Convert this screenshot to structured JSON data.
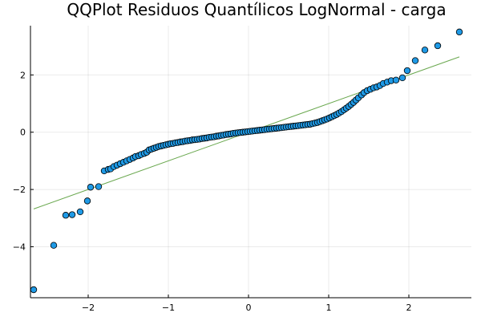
{
  "chart_data": {
    "type": "scatter",
    "title": "QQPlot Residuos Quantílicos LogNormal - carga",
    "xlabel": "",
    "ylabel": "",
    "xlim": [
      -2.72,
      2.78
    ],
    "ylim": [
      -5.78,
      3.72
    ],
    "xticks": [
      -2,
      -1,
      0,
      1,
      2
    ],
    "xtick_labels": [
      "−2",
      "−1",
      "0",
      "1",
      "2"
    ],
    "yticks": [
      -4,
      -2,
      0,
      2
    ],
    "ytick_labels": [
      "−4",
      "−2",
      "0",
      "2"
    ],
    "grid": true,
    "legend": "none",
    "colors": {
      "points": "#1f9ae6",
      "point_edge": "#000000",
      "line": "#6aa84f"
    },
    "series": [
      {
        "kind": "points",
        "x": [
          -2.68,
          -2.43,
          -2.28,
          -2.2,
          -2.1,
          -2.01,
          -1.97,
          -1.87,
          -1.8,
          -1.75,
          -1.72,
          -1.68,
          -1.64,
          -1.6,
          -1.56,
          -1.52,
          -1.48,
          -1.44,
          -1.41,
          -1.37,
          -1.34,
          -1.3,
          -1.27,
          -1.24,
          -1.21,
          -1.18,
          -1.15,
          -1.12,
          -1.09,
          -1.06,
          -1.03,
          -1.0,
          -0.97,
          -0.94,
          -0.91,
          -0.88,
          -0.85,
          -0.82,
          -0.79,
          -0.76,
          -0.73,
          -0.7,
          -0.67,
          -0.64,
          -0.61,
          -0.58,
          -0.55,
          -0.52,
          -0.49,
          -0.46,
          -0.43,
          -0.4,
          -0.37,
          -0.34,
          -0.31,
          -0.28,
          -0.25,
          -0.22,
          -0.19,
          -0.16,
          -0.13,
          -0.1,
          -0.07,
          -0.04,
          -0.01,
          0.02,
          0.05,
          0.08,
          0.11,
          0.14,
          0.17,
          0.2,
          0.23,
          0.26,
          0.29,
          0.32,
          0.35,
          0.38,
          0.41,
          0.44,
          0.47,
          0.5,
          0.53,
          0.56,
          0.59,
          0.62,
          0.65,
          0.68,
          0.71,
          0.74,
          0.77,
          0.8,
          0.83,
          0.86,
          0.89,
          0.92,
          0.95,
          0.98,
          1.01,
          1.04,
          1.07,
          1.1,
          1.13,
          1.16,
          1.19,
          1.22,
          1.25,
          1.28,
          1.31,
          1.34,
          1.37,
          1.41,
          1.44,
          1.48,
          1.52,
          1.56,
          1.6,
          1.64,
          1.68,
          1.73,
          1.78,
          1.84,
          1.92,
          1.98,
          2.08,
          2.2,
          2.36,
          2.63
        ],
        "y": [
          -5.5,
          -3.95,
          -2.9,
          -2.88,
          -2.78,
          -2.4,
          -1.92,
          -1.9,
          -1.35,
          -1.3,
          -1.28,
          -1.2,
          -1.15,
          -1.1,
          -1.05,
          -1.0,
          -0.95,
          -0.9,
          -0.85,
          -0.82,
          -0.78,
          -0.74,
          -0.7,
          -0.62,
          -0.59,
          -0.56,
          -0.53,
          -0.5,
          -0.48,
          -0.46,
          -0.44,
          -0.42,
          -0.4,
          -0.39,
          -0.37,
          -0.36,
          -0.34,
          -0.33,
          -0.31,
          -0.3,
          -0.29,
          -0.27,
          -0.26,
          -0.25,
          -0.24,
          -0.22,
          -0.21,
          -0.2,
          -0.18,
          -0.17,
          -0.16,
          -0.14,
          -0.13,
          -0.11,
          -0.1,
          -0.08,
          -0.07,
          -0.06,
          -0.04,
          -0.03,
          -0.02,
          -0.01,
          0.0,
          0.01,
          0.02,
          0.03,
          0.04,
          0.05,
          0.06,
          0.07,
          0.08,
          0.09,
          0.1,
          0.11,
          0.12,
          0.13,
          0.14,
          0.15,
          0.16,
          0.17,
          0.18,
          0.19,
          0.2,
          0.21,
          0.22,
          0.23,
          0.24,
          0.25,
          0.26,
          0.27,
          0.28,
          0.3,
          0.32,
          0.34,
          0.37,
          0.4,
          0.43,
          0.46,
          0.5,
          0.54,
          0.58,
          0.62,
          0.67,
          0.72,
          0.78,
          0.84,
          0.9,
          0.97,
          1.04,
          1.12,
          1.2,
          1.3,
          1.38,
          1.45,
          1.5,
          1.55,
          1.58,
          1.63,
          1.7,
          1.75,
          1.8,
          1.82,
          1.9,
          2.15,
          2.5,
          2.87,
          3.02,
          3.5
        ]
      },
      {
        "kind": "line",
        "x": [
          -2.68,
          2.63
        ],
        "y": [
          -2.68,
          2.63
        ]
      }
    ]
  }
}
